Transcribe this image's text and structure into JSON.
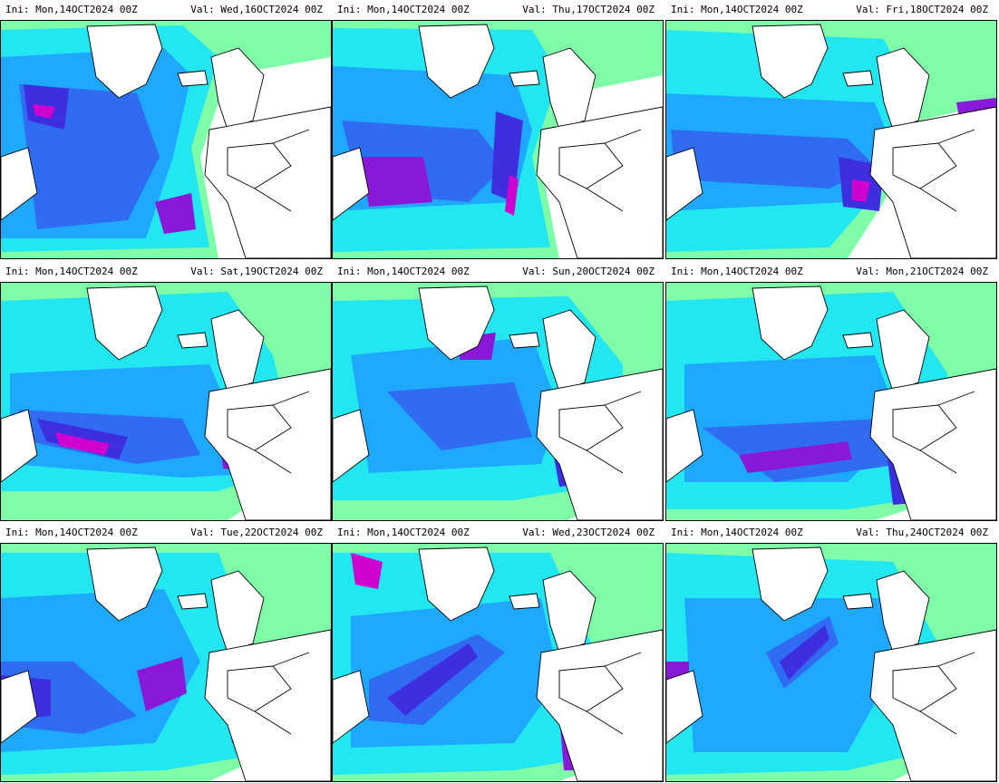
{
  "panels": [
    {
      "ini": "Ini: Mon,14OCT2024 00Z",
      "val": "Val: Wed,16OCT2024 00Z"
    },
    {
      "ini": "Ini: Mon,14OCT2024 00Z",
      "val": "Val: Thu,17OCT2024 00Z"
    },
    {
      "ini": "Ini: Mon,14OCT2024 00Z",
      "val": "Val: Fri,18OCT2024 00Z"
    },
    {
      "ini": "Ini: Mon,14OCT2024 00Z",
      "val": "Val: Sat,19OCT2024 00Z"
    },
    {
      "ini": "Ini: Mon,14OCT2024 00Z",
      "val": "Val: Sun,20OCT2024 00Z"
    },
    {
      "ini": "Ini: Mon,14OCT2024 00Z",
      "val": "Val: Mon,21OCT2024 00Z"
    },
    {
      "ini": "Ini: Mon,14OCT2024 00Z",
      "val": "Val: Tue,22OCT2024 00Z"
    },
    {
      "ini": "Ini: Mon,14OCT2024 00Z",
      "val": "Val: Wed,23OCT2024 00Z"
    },
    {
      "ini": "Ini: Mon,14OCT2024 00Z",
      "val": "Val: Thu,24OCT2024 00Z"
    }
  ],
  "colors": {
    "scale": [
      "#7ffca8",
      "#22e6f0",
      "#1ea8ff",
      "#2f6cf2",
      "#3d2fe0",
      "#8a18d8",
      "#d000d0"
    ],
    "land_outline": "#000000",
    "background": "#ffffff"
  }
}
